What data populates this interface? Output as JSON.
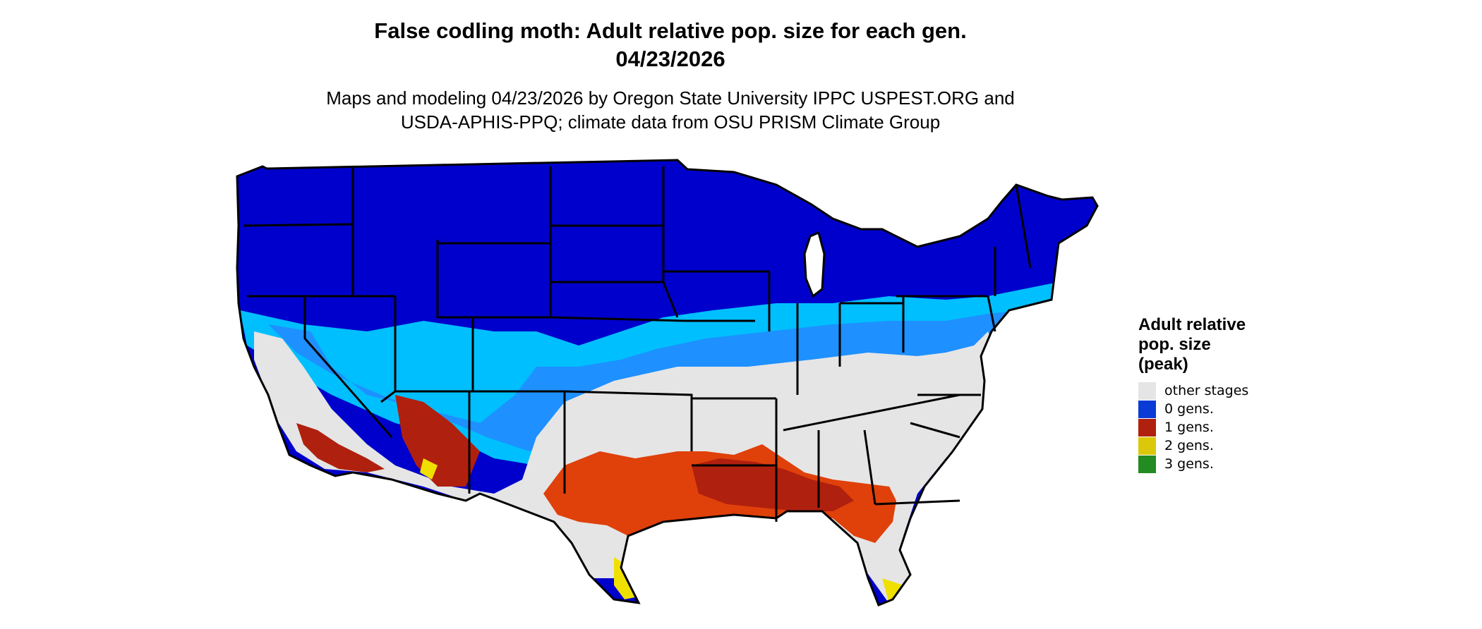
{
  "title_line1": "False codling moth: Adult relative pop. size for each gen.",
  "title_line2": "04/23/2026",
  "subtitle_line1": "Maps and modeling 04/23/2026 by Oregon State University IPPC USPEST.ORG and",
  "subtitle_line2": "USDA-APHIS-PPQ; climate data from OSU PRISM Climate Group",
  "legend": {
    "title_line1": "Adult relative",
    "title_line2": "pop. size",
    "title_line3": "(peak)",
    "items": [
      {
        "label": "other stages",
        "color": "#e5e5e5"
      },
      {
        "label": "0 gens.",
        "color": "#0a3bd6"
      },
      {
        "label": "1 gens.",
        "color": "#b0200e"
      },
      {
        "label": "2 gens.",
        "color": "#dcc80a"
      },
      {
        "label": "3 gens.",
        "color": "#228b22"
      }
    ]
  },
  "colors": {
    "deep_blue": "#0000cc",
    "light_blue": "#1e90ff",
    "cyan": "#00bfff",
    "grey": "#e5e5e5",
    "red": "#b0200e",
    "orange_red": "#e0400a",
    "yellow": "#f0e000",
    "border": "#000000"
  }
}
